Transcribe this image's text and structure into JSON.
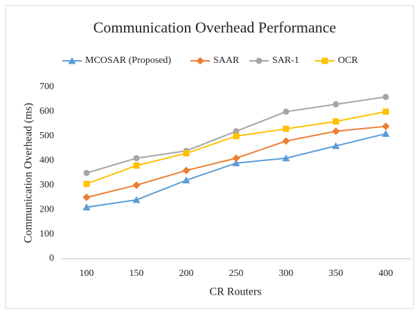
{
  "chart_data": {
    "type": "line",
    "title": "Communication  Overhead  Performance",
    "x_label": "CR Routers",
    "y_label": "Communication Overhead  (ms)",
    "categories": [
      "100",
      "150",
      "200",
      "250",
      "300",
      "350",
      "400"
    ],
    "series": [
      {
        "name": "MCOSAR (Proposed)",
        "color": "#5b9bd5",
        "marker": "triangle",
        "values": [
          210,
          240,
          320,
          390,
          410,
          460,
          510
        ]
      },
      {
        "name": "SAAR",
        "color": "#ed7d31",
        "marker": "diamond",
        "values": [
          250,
          300,
          360,
          410,
          480,
          520,
          540
        ]
      },
      {
        "name": "SAR-1",
        "color": "#a5a5a5",
        "marker": "circle",
        "values": [
          350,
          410,
          440,
          520,
          600,
          630,
          660
        ]
      },
      {
        "name": "OCR",
        "color": "#ffc000",
        "marker": "square",
        "values": [
          305,
          380,
          430,
          500,
          530,
          560,
          600
        ]
      }
    ],
    "ylim": [
      0,
      700
    ],
    "yticks": [
      0,
      100,
      200,
      300,
      400,
      500,
      600,
      700
    ],
    "grid": false,
    "legend": "top"
  }
}
